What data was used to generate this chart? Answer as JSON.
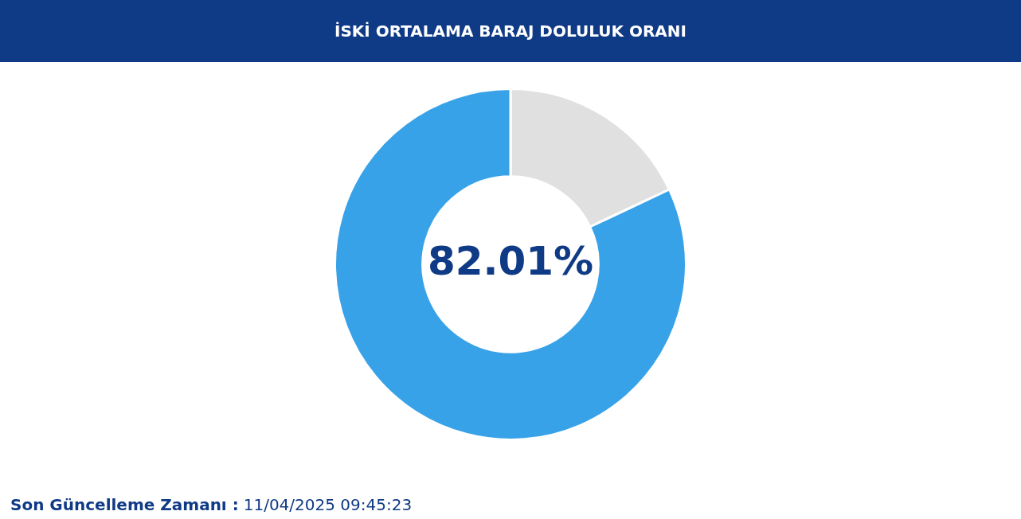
{
  "chart_data": {
    "type": "donut",
    "title": "İSKİ ORTALAMA BARAJ DOLULUK ORANI",
    "categories": [
      null,
      null
    ],
    "values": [
      17.99,
      82.01
    ],
    "colors": [
      "#e0e0e0",
      "#38a2e8"
    ],
    "value_labels": [
      null,
      "82.01%"
    ],
    "annotations": [
      "Son Güncelleme Zamanı :",
      "11/04/2025 09:45:23"
    ],
    "legend": false
  }
}
